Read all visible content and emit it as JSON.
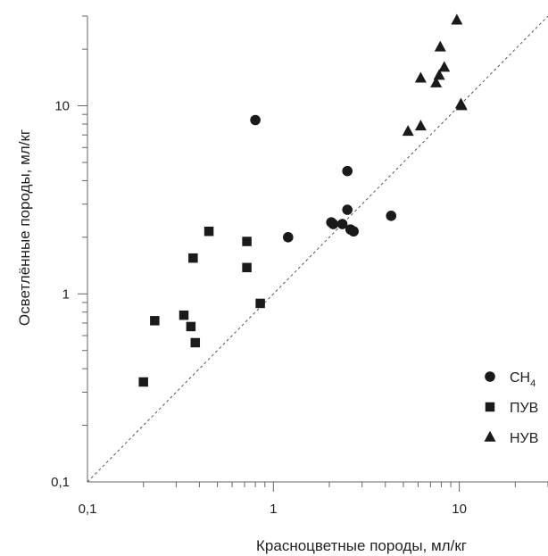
{
  "chart_data": {
    "type": "scatter",
    "xlabel": "Красноцветные породы, мл/кг",
    "ylabel": "Осветлённые породы, мл/кг",
    "x_scale": "log",
    "y_scale": "log",
    "xlim": [
      0.1,
      30
    ],
    "ylim": [
      0.1,
      30
    ],
    "x_ticks": [
      {
        "value": 0.1,
        "label": "0,1"
      },
      {
        "value": 1,
        "label": "1"
      },
      {
        "value": 10,
        "label": "10"
      }
    ],
    "y_ticks": [
      {
        "value": 0.1,
        "label": "0,1"
      },
      {
        "value": 1,
        "label": "1"
      },
      {
        "value": 10,
        "label": "10"
      }
    ],
    "reference_line": "y = x",
    "legend_position": "right",
    "series": [
      {
        "name": "CH",
        "name_sub": "4",
        "marker": "circle",
        "points": [
          [
            0.8,
            8.4
          ],
          [
            2.5,
            4.5
          ],
          [
            2.5,
            2.8
          ],
          [
            4.3,
            2.6
          ],
          [
            2.05,
            2.4
          ],
          [
            2.1,
            2.35
          ],
          [
            2.35,
            2.35
          ],
          [
            2.6,
            2.2
          ],
          [
            2.7,
            2.15
          ],
          [
            1.2,
            2.0
          ]
        ]
      },
      {
        "name": "ПУВ",
        "marker": "square",
        "points": [
          [
            0.45,
            2.15
          ],
          [
            0.72,
            1.9
          ],
          [
            0.37,
            1.55
          ],
          [
            0.72,
            1.38
          ],
          [
            0.85,
            0.89
          ],
          [
            0.33,
            0.77
          ],
          [
            0.23,
            0.72
          ],
          [
            0.36,
            0.67
          ],
          [
            0.38,
            0.55
          ],
          [
            0.2,
            0.34
          ]
        ]
      },
      {
        "name": "НУВ",
        "marker": "triangle",
        "points": [
          [
            9.7,
            28.5
          ],
          [
            7.9,
            20.5
          ],
          [
            8.3,
            16.0
          ],
          [
            7.8,
            14.5
          ],
          [
            6.2,
            14.0
          ],
          [
            7.5,
            13.2
          ],
          [
            10.2,
            10.2
          ],
          [
            10.3,
            10.0
          ],
          [
            6.2,
            7.8
          ],
          [
            5.3,
            7.3
          ]
        ]
      }
    ]
  }
}
